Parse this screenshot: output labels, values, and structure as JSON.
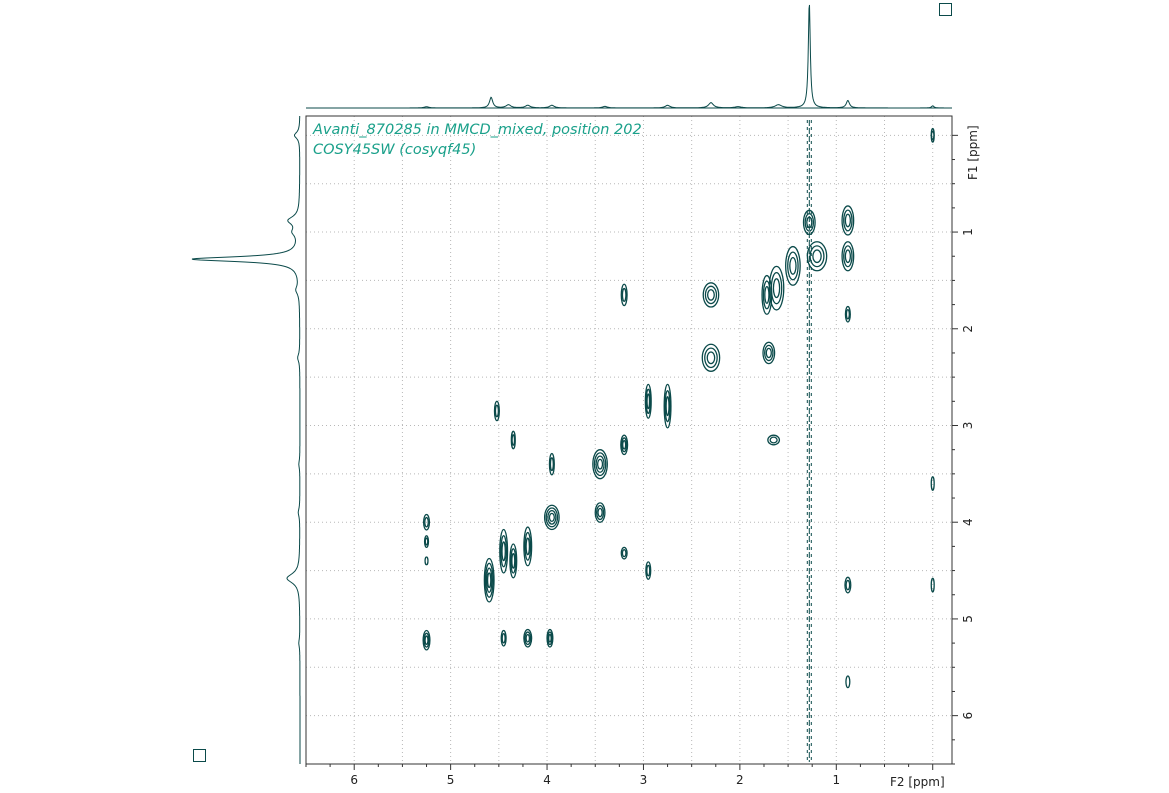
{
  "chart_data": {
    "type": "contour-2d-nmr",
    "title_lines": [
      "Avanti_870285 in MMCD_mixed, position 202",
      "COSY45SW (cosyqf45)"
    ],
    "x_axis": {
      "label": "F2 [ppm]",
      "reversed": true,
      "range": [
        6.5,
        -0.2
      ],
      "ticks": [
        6,
        5,
        4,
        3,
        2,
        1
      ],
      "minor_step": 0.5
    },
    "y_axis": {
      "label": "F1 [ppm]",
      "reversed": true,
      "range": [
        -0.2,
        6.5
      ],
      "ticks": [
        1,
        2,
        3,
        4,
        5,
        6
      ],
      "minor_step": 0.5
    },
    "grid": true,
    "colors": {
      "contour": "#0b4a4a",
      "text": "#1aa08a",
      "grid": "#b8b8b8",
      "frame": "#333333"
    },
    "projection_f2_peaks": [
      {
        "ppm": 1.28,
        "height": 1.0,
        "width": 0.012
      },
      {
        "ppm": 4.58,
        "height": 0.1,
        "width": 0.02
      },
      {
        "ppm": 0.88,
        "height": 0.07,
        "width": 0.02
      },
      {
        "ppm": 2.3,
        "height": 0.05,
        "width": 0.03
      },
      {
        "ppm": 1.6,
        "height": 0.03,
        "width": 0.04
      },
      {
        "ppm": 0.0,
        "height": 0.02,
        "width": 0.015
      },
      {
        "ppm": 4.4,
        "height": 0.03,
        "width": 0.03
      },
      {
        "ppm": 3.95,
        "height": 0.025,
        "width": 0.03
      },
      {
        "ppm": 4.2,
        "height": 0.025,
        "width": 0.03
      },
      {
        "ppm": 2.75,
        "height": 0.025,
        "width": 0.03
      },
      {
        "ppm": 3.4,
        "height": 0.015,
        "width": 0.03
      },
      {
        "ppm": 5.25,
        "height": 0.012,
        "width": 0.03
      },
      {
        "ppm": 2.02,
        "height": 0.012,
        "width": 0.04
      }
    ],
    "projection_f1_peaks": [
      {
        "ppm": 1.28,
        "height": 1.0,
        "width": 0.03
      },
      {
        "ppm": 4.58,
        "height": 0.12,
        "width": 0.06
      },
      {
        "ppm": 0.88,
        "height": 0.1,
        "width": 0.05
      },
      {
        "ppm": 1.0,
        "height": 0.05,
        "width": 0.05
      },
      {
        "ppm": 0.0,
        "height": 0.05,
        "width": 0.04
      },
      {
        "ppm": 1.6,
        "height": 0.03,
        "width": 0.05
      },
      {
        "ppm": 2.3,
        "height": 0.02,
        "width": 0.05
      },
      {
        "ppm": 3.9,
        "height": 0.015,
        "width": 0.05
      },
      {
        "ppm": 3.4,
        "height": 0.01,
        "width": 0.05
      },
      {
        "ppm": 5.25,
        "height": 0.01,
        "width": 0.05
      }
    ],
    "cross_peaks": [
      {
        "f2": 0.0,
        "f1": 0.0,
        "wppm": 0.03,
        "hppm": 0.14,
        "rings": 2
      },
      {
        "f2": 0.0,
        "f1": 3.6,
        "wppm": 0.03,
        "hppm": 0.14,
        "rings": 1
      },
      {
        "f2": 0.0,
        "f1": 4.65,
        "wppm": 0.03,
        "hppm": 0.14,
        "rings": 1
      },
      {
        "f2": 0.88,
        "f1": 0.88,
        "wppm": 0.12,
        "hppm": 0.3,
        "rings": 3
      },
      {
        "f2": 0.88,
        "f1": 1.25,
        "wppm": 0.12,
        "hppm": 0.3,
        "rings": 3
      },
      {
        "f2": 0.88,
        "f1": 1.85,
        "wppm": 0.05,
        "hppm": 0.16,
        "rings": 2
      },
      {
        "f2": 0.88,
        "f1": 4.65,
        "wppm": 0.06,
        "hppm": 0.16,
        "rings": 2
      },
      {
        "f2": 0.88,
        "f1": 5.65,
        "wppm": 0.04,
        "hppm": 0.12,
        "rings": 1
      },
      {
        "f2": 1.28,
        "f1": 0.9,
        "wppm": 0.12,
        "hppm": 0.25,
        "rings": 3
      },
      {
        "f2": 1.2,
        "f1": 1.25,
        "wppm": 0.2,
        "hppm": 0.3,
        "rings": 3
      },
      {
        "f2": 1.45,
        "f1": 1.35,
        "wppm": 0.15,
        "hppm": 0.4,
        "rings": 3
      },
      {
        "f2": 1.62,
        "f1": 1.58,
        "wppm": 0.15,
        "hppm": 0.45,
        "rings": 3
      },
      {
        "f2": 1.72,
        "f1": 1.65,
        "wppm": 0.1,
        "hppm": 0.4,
        "rings": 3
      },
      {
        "f2": 1.7,
        "f1": 2.25,
        "wppm": 0.12,
        "hppm": 0.22,
        "rings": 3
      },
      {
        "f2": 1.65,
        "f1": 3.15,
        "wppm": 0.12,
        "hppm": 0.1,
        "rings": 2
      },
      {
        "f2": 2.3,
        "f1": 1.65,
        "wppm": 0.16,
        "hppm": 0.25,
        "rings": 3
      },
      {
        "f2": 2.3,
        "f1": 2.3,
        "wppm": 0.18,
        "hppm": 0.28,
        "rings": 3
      },
      {
        "f2": 2.75,
        "f1": 2.8,
        "wppm": 0.07,
        "hppm": 0.45,
        "rings": 3
      },
      {
        "f2": 2.95,
        "f1": 2.75,
        "wppm": 0.06,
        "hppm": 0.35,
        "rings": 3
      },
      {
        "f2": 2.95,
        "f1": 4.5,
        "wppm": 0.05,
        "hppm": 0.18,
        "rings": 2
      },
      {
        "f2": 3.2,
        "f1": 1.65,
        "wppm": 0.06,
        "hppm": 0.22,
        "rings": 2
      },
      {
        "f2": 3.2,
        "f1": 3.2,
        "wppm": 0.07,
        "hppm": 0.2,
        "rings": 3
      },
      {
        "f2": 3.2,
        "f1": 4.32,
        "wppm": 0.06,
        "hppm": 0.12,
        "rings": 2
      },
      {
        "f2": 3.45,
        "f1": 3.4,
        "wppm": 0.15,
        "hppm": 0.3,
        "rings": 4
      },
      {
        "f2": 3.45,
        "f1": 3.9,
        "wppm": 0.1,
        "hppm": 0.2,
        "rings": 3
      },
      {
        "f2": 3.95,
        "f1": 3.95,
        "wppm": 0.15,
        "hppm": 0.25,
        "rings": 4
      },
      {
        "f2": 3.95,
        "f1": 3.4,
        "wppm": 0.05,
        "hppm": 0.22,
        "rings": 2
      },
      {
        "f2": 3.97,
        "f1": 5.2,
        "wppm": 0.06,
        "hppm": 0.18,
        "rings": 3
      },
      {
        "f2": 4.2,
        "f1": 4.25,
        "wppm": 0.08,
        "hppm": 0.4,
        "rings": 3
      },
      {
        "f2": 4.2,
        "f1": 5.2,
        "wppm": 0.08,
        "hppm": 0.18,
        "rings": 3
      },
      {
        "f2": 4.35,
        "f1": 3.15,
        "wppm": 0.04,
        "hppm": 0.18,
        "rings": 2
      },
      {
        "f2": 4.35,
        "f1": 4.4,
        "wppm": 0.07,
        "hppm": 0.35,
        "rings": 3
      },
      {
        "f2": 4.45,
        "f1": 4.3,
        "wppm": 0.08,
        "hppm": 0.45,
        "rings": 3
      },
      {
        "f2": 4.45,
        "f1": 5.2,
        "wppm": 0.05,
        "hppm": 0.16,
        "rings": 2
      },
      {
        "f2": 4.52,
        "f1": 2.85,
        "wppm": 0.05,
        "hppm": 0.2,
        "rings": 2
      },
      {
        "f2": 4.6,
        "f1": 4.6,
        "wppm": 0.1,
        "hppm": 0.45,
        "rings": 4
      },
      {
        "f2": 5.25,
        "f1": 4.0,
        "wppm": 0.06,
        "hppm": 0.16,
        "rings": 2
      },
      {
        "f2": 5.25,
        "f1": 4.2,
        "wppm": 0.04,
        "hppm": 0.12,
        "rings": 2
      },
      {
        "f2": 5.25,
        "f1": 4.4,
        "wppm": 0.03,
        "hppm": 0.08,
        "rings": 1
      },
      {
        "f2": 5.25,
        "f1": 5.22,
        "wppm": 0.07,
        "hppm": 0.2,
        "rings": 3
      }
    ],
    "vertical_streaks_f2": [
      1.28
    ]
  }
}
